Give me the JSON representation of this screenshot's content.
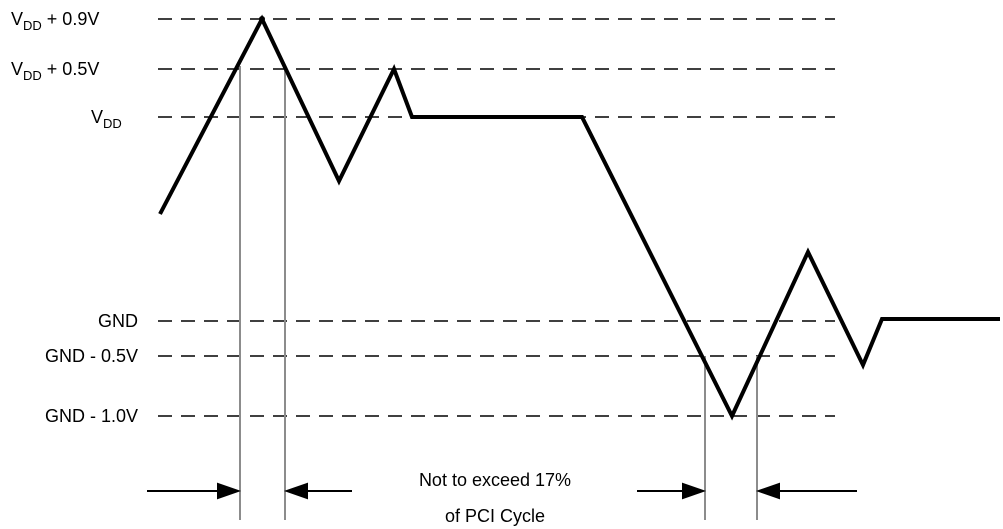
{
  "levels": {
    "vdd_plus_09": {
      "prefix": "V",
      "sub": "DD",
      "suffix": " + 0.9V"
    },
    "vdd_plus_05": {
      "prefix": "V",
      "sub": "DD",
      "suffix": " + 0.5V"
    },
    "vdd": {
      "prefix": "V",
      "sub": "DD",
      "suffix": ""
    },
    "gnd": {
      "text": "GND"
    },
    "gnd_minus_05": {
      "text": "GND - 0.5V"
    },
    "gnd_minus_10": {
      "text": "GND - 1.0V"
    }
  },
  "note": {
    "line1": "Not to exceed 17%",
    "line2": "of PCI Cycle"
  }
}
